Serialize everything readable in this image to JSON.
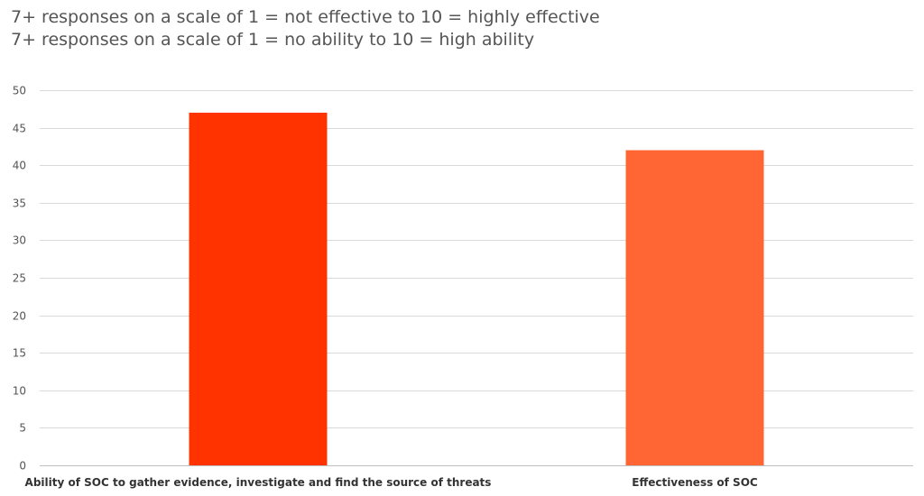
{
  "header": {
    "line1": "7+ responses on a scale of 1 = not effective to 10 = highly effective",
    "line2": "7+ responses on a scale of 1 = no ability to 10 = high ability"
  },
  "chart_data": {
    "type": "bar",
    "categories": [
      "Ability of SOC to gather evidence, investigate and find the source of threats",
      "Effectiveness of SOC"
    ],
    "values": [
      47,
      42
    ],
    "colors": [
      "#ff3300",
      "#ff6633"
    ],
    "ylim": [
      0,
      50
    ],
    "yticks": [
      0,
      5,
      10,
      15,
      20,
      25,
      30,
      35,
      40,
      45,
      50
    ],
    "grid": true,
    "legend": "none"
  }
}
